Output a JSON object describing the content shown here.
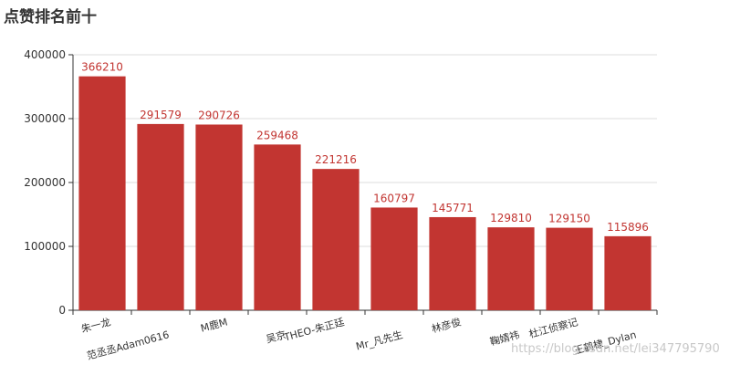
{
  "chart_data": {
    "type": "bar",
    "title": "点赞排名前十",
    "categories": [
      "朱一龙",
      "范丞丞Adam0616",
      "M鹿M",
      "吴京",
      "THEO-朱正廷",
      "Mr_凡先生",
      "林彦俊",
      "鞠婧祎",
      "杜江侦察记",
      "王鹤棣_Dylan"
    ],
    "values": [
      366210,
      291579,
      290726,
      259468,
      221216,
      160797,
      145771,
      129810,
      129150,
      115896
    ],
    "ylim": [
      0,
      400000
    ],
    "yticks": [
      0,
      100000,
      200000,
      300000,
      400000
    ],
    "xlabel": "",
    "ylabel": "",
    "grid": true,
    "bar_color": "#c23531",
    "label_color": "#c23531"
  },
  "watermark": "https://blog.csdn.net/lei347795790"
}
